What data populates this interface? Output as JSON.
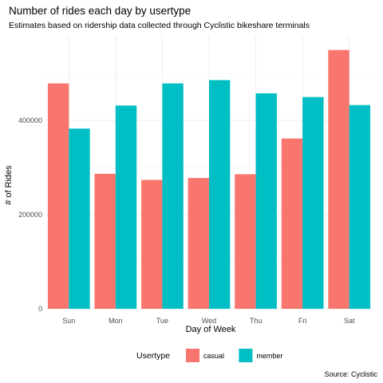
{
  "chart_data": {
    "type": "bar",
    "title": "Number of rides each day by usertype",
    "subtitle": "Estimates based on ridership data collected through Cyclistic bikeshare terminals",
    "xlabel": "Day of Week",
    "ylabel": "# of Rides",
    "caption": "Source: Cyclistic",
    "categories": [
      "Sun",
      "Mon",
      "Tue",
      "Wed",
      "Thu",
      "Fri",
      "Sat"
    ],
    "ylim": [
      0,
      580000
    ],
    "yticks": [
      0,
      200000,
      400000
    ],
    "ytick_labels": [
      "0",
      "200000",
      "400000"
    ],
    "grid": true,
    "legend": {
      "title": "Usertype",
      "position": "bottom"
    },
    "series": [
      {
        "name": "casual",
        "color": "#F8766D",
        "values": [
          479000,
          287000,
          274000,
          278000,
          286000,
          362000,
          550000
        ]
      },
      {
        "name": "member",
        "color": "#00BFC4",
        "values": [
          383000,
          432000,
          479000,
          486000,
          458000,
          450000,
          433000
        ]
      }
    ]
  }
}
